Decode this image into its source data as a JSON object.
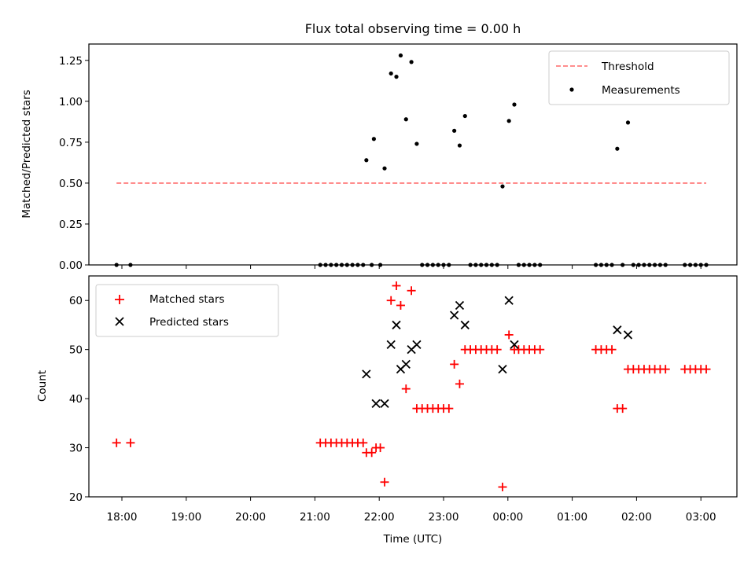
{
  "chart_data": [
    {
      "type": "scatter",
      "title": "Flux total observing time = 0.00 h",
      "ylabel": "Matched/Predicted stars",
      "xlabel": "",
      "ylim": [
        0,
        1.35
      ],
      "yticks": [
        "0.00",
        "0.25",
        "0.50",
        "0.75",
        "1.00",
        "1.25"
      ],
      "legend_position": "top-right",
      "threshold": {
        "name": "Threshold",
        "value": 0.5,
        "x_range": [
          "17:55",
          "03:05"
        ],
        "color": "#ff7f7f"
      },
      "series": [
        {
          "name": "Measurements",
          "color": "#000000",
          "points": [
            [
              "17:55",
              0
            ],
            [
              "18:08",
              0
            ],
            [
              "21:05",
              0
            ],
            [
              "21:10",
              0
            ],
            [
              "21:15",
              0
            ],
            [
              "21:20",
              0
            ],
            [
              "21:25",
              0
            ],
            [
              "21:30",
              0
            ],
            [
              "21:35",
              0
            ],
            [
              "21:40",
              0
            ],
            [
              "21:45",
              0
            ],
            [
              "21:53",
              0
            ],
            [
              "22:01",
              0
            ],
            [
              "21:48",
              0.64
            ],
            [
              "21:55",
              0.77
            ],
            [
              "22:05",
              0.59
            ],
            [
              "22:11",
              1.17
            ],
            [
              "22:16",
              1.15
            ],
            [
              "22:20",
              1.28
            ],
            [
              "22:25",
              0.89
            ],
            [
              "22:30",
              1.24
            ],
            [
              "22:35",
              0.74
            ],
            [
              "22:40",
              0
            ],
            [
              "22:45",
              0
            ],
            [
              "22:50",
              0
            ],
            [
              "22:55",
              0
            ],
            [
              "23:00",
              0
            ],
            [
              "23:05",
              0
            ],
            [
              "23:10",
              0.82
            ],
            [
              "23:15",
              0.73
            ],
            [
              "23:20",
              0.91
            ],
            [
              "23:25",
              0
            ],
            [
              "23:30",
              0
            ],
            [
              "23:35",
              0
            ],
            [
              "23:40",
              0
            ],
            [
              "23:45",
              0
            ],
            [
              "23:50",
              0
            ],
            [
              "23:55",
              0.48
            ],
            [
              "00:01",
              0.88
            ],
            [
              "00:06",
              0.98
            ],
            [
              "00:10",
              0
            ],
            [
              "00:15",
              0
            ],
            [
              "00:20",
              0
            ],
            [
              "00:25",
              0
            ],
            [
              "00:30",
              0
            ],
            [
              "01:22",
              0
            ],
            [
              "01:27",
              0
            ],
            [
              "01:32",
              0
            ],
            [
              "01:37",
              0
            ],
            [
              "01:42",
              0.71
            ],
            [
              "01:47",
              0
            ],
            [
              "01:52",
              0.87
            ],
            [
              "01:57",
              0
            ],
            [
              "02:02",
              0
            ],
            [
              "02:07",
              0
            ],
            [
              "02:12",
              0
            ],
            [
              "02:17",
              0
            ],
            [
              "02:22",
              0
            ],
            [
              "02:27",
              0
            ],
            [
              "02:45",
              0
            ],
            [
              "02:50",
              0
            ],
            [
              "02:55",
              0
            ],
            [
              "03:00",
              0
            ],
            [
              "03:05",
              0
            ]
          ]
        }
      ]
    },
    {
      "type": "scatter",
      "title": "",
      "ylabel": "Count",
      "xlabel": "Time (UTC)",
      "ylim": [
        20,
        65
      ],
      "yticks": [
        "20",
        "30",
        "40",
        "50",
        "60"
      ],
      "xticks": [
        "18:00",
        "19:00",
        "20:00",
        "21:00",
        "22:00",
        "23:00",
        "00:00",
        "01:00",
        "02:00",
        "03:00"
      ],
      "legend_position": "top-left",
      "series": [
        {
          "name": "Matched stars",
          "marker": "plus",
          "color": "#ff0000",
          "points": [
            [
              "17:55",
              31
            ],
            [
              "18:08",
              31
            ],
            [
              "21:05",
              31
            ],
            [
              "21:10",
              31
            ],
            [
              "21:15",
              31
            ],
            [
              "21:20",
              31
            ],
            [
              "21:25",
              31
            ],
            [
              "21:30",
              31
            ],
            [
              "21:35",
              31
            ],
            [
              "21:40",
              31
            ],
            [
              "21:45",
              31
            ],
            [
              "21:48",
              29
            ],
            [
              "21:53",
              29
            ],
            [
              "21:57",
              30
            ],
            [
              "22:01",
              30
            ],
            [
              "22:05",
              23
            ],
            [
              "22:11",
              60
            ],
            [
              "22:16",
              63
            ],
            [
              "22:20",
              59
            ],
            [
              "22:25",
              42
            ],
            [
              "22:30",
              62
            ],
            [
              "22:35",
              38
            ],
            [
              "22:40",
              38
            ],
            [
              "22:45",
              38
            ],
            [
              "22:50",
              38
            ],
            [
              "22:55",
              38
            ],
            [
              "23:00",
              38
            ],
            [
              "23:05",
              38
            ],
            [
              "23:10",
              47
            ],
            [
              "23:15",
              43
            ],
            [
              "23:20",
              50
            ],
            [
              "23:25",
              50
            ],
            [
              "23:30",
              50
            ],
            [
              "23:35",
              50
            ],
            [
              "23:40",
              50
            ],
            [
              "23:45",
              50
            ],
            [
              "23:50",
              50
            ],
            [
              "23:55",
              22
            ],
            [
              "00:01",
              53
            ],
            [
              "00:06",
              50
            ],
            [
              "00:10",
              50
            ],
            [
              "00:15",
              50
            ],
            [
              "00:20",
              50
            ],
            [
              "00:25",
              50
            ],
            [
              "00:30",
              50
            ],
            [
              "01:22",
              50
            ],
            [
              "01:27",
              50
            ],
            [
              "01:32",
              50
            ],
            [
              "01:37",
              50
            ],
            [
              "01:42",
              38
            ],
            [
              "01:47",
              38
            ],
            [
              "01:52",
              46
            ],
            [
              "01:57",
              46
            ],
            [
              "02:02",
              46
            ],
            [
              "02:07",
              46
            ],
            [
              "02:12",
              46
            ],
            [
              "02:17",
              46
            ],
            [
              "02:22",
              46
            ],
            [
              "02:27",
              46
            ],
            [
              "02:45",
              46
            ],
            [
              "02:50",
              46
            ],
            [
              "02:55",
              46
            ],
            [
              "03:00",
              46
            ],
            [
              "03:05",
              46
            ]
          ]
        },
        {
          "name": "Predicted stars",
          "marker": "x",
          "color": "#000000",
          "points": [
            [
              "21:48",
              45
            ],
            [
              "21:57",
              39
            ],
            [
              "22:05",
              39
            ],
            [
              "22:11",
              51
            ],
            [
              "22:16",
              55
            ],
            [
              "22:20",
              46
            ],
            [
              "22:25",
              47
            ],
            [
              "22:30",
              50
            ],
            [
              "22:35",
              51
            ],
            [
              "23:10",
              57
            ],
            [
              "23:15",
              59
            ],
            [
              "23:20",
              55
            ],
            [
              "23:55",
              46
            ],
            [
              "00:01",
              60
            ],
            [
              "00:06",
              51
            ],
            [
              "01:42",
              54
            ],
            [
              "01:52",
              53
            ]
          ]
        }
      ]
    }
  ]
}
